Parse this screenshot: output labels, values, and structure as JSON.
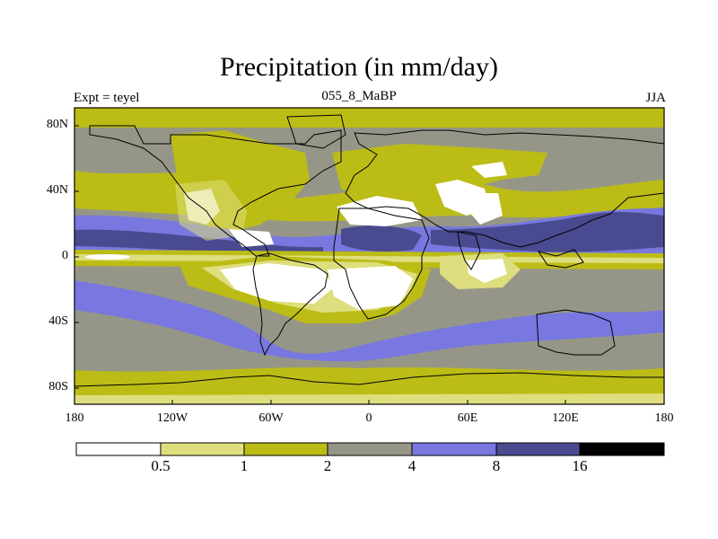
{
  "title": "Precipitation (in mm/day)",
  "experiment_label": "Expt = teyel",
  "period_label": "055_8_MaBP",
  "season_label": "JJA",
  "latitude_ticks": [
    "80N",
    "40N",
    "0",
    "40S",
    "80S"
  ],
  "longitude_ticks": [
    "180",
    "120W",
    "60W",
    "0",
    "60E",
    "120E",
    "180"
  ],
  "colorbar": {
    "labels": [
      "0.5",
      "1",
      "2",
      "4",
      "8",
      "16"
    ],
    "colors": [
      "#ffffff",
      "#dede7e",
      "#bcbc16",
      "#969688",
      "#7878e0",
      "#4a4a90",
      "#000000"
    ]
  }
}
